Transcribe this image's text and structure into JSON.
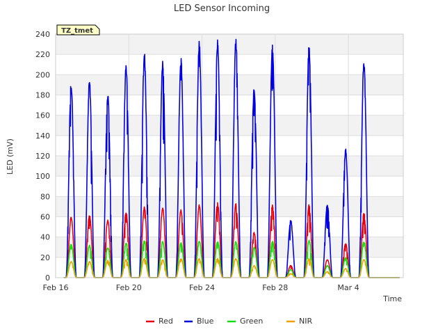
{
  "chart_data": {
    "type": "line",
    "title": "LED Sensor Incoming",
    "xlabel": "Time",
    "ylabel": "LED (mV)",
    "station_tag": "TZ_tmet",
    "xlim": [
      16,
      35
    ],
    "ylim": [
      0,
      240
    ],
    "yticks": [
      0,
      20,
      40,
      60,
      80,
      100,
      120,
      140,
      160,
      180,
      200,
      220,
      240
    ],
    "xticks": [
      {
        "value": 16,
        "label": "Feb 16"
      },
      {
        "value": 20,
        "label": "Feb 20"
      },
      {
        "value": 24,
        "label": "Feb 24"
      },
      {
        "value": 28,
        "label": "Feb 28"
      },
      {
        "value": 32,
        "label": "Mar 4"
      }
    ],
    "days": [
      16.85,
      17.85,
      18.85,
      19.85,
      20.85,
      21.85,
      22.85,
      23.85,
      24.85,
      25.85,
      26.85,
      27.85,
      28.85,
      29.85,
      30.85,
      31.85,
      32.85
    ],
    "series": [
      {
        "name": "Red",
        "color": "#e8000b",
        "peaks": [
          60,
          62,
          57,
          65,
          70,
          70,
          68,
          72,
          74,
          73,
          45,
          72,
          12,
          72,
          18,
          34,
          64
        ]
      },
      {
        "name": "Blue",
        "color": "#0000e0",
        "peaks": [
          193,
          195,
          182,
          210,
          222,
          215,
          219,
          234,
          235,
          236,
          190,
          231,
          57,
          232,
          73,
          128,
          216
        ]
      },
      {
        "name": "Green",
        "color": "#10e010",
        "peaks": [
          33,
          32,
          30,
          34,
          37,
          36,
          35,
          36,
          36,
          36,
          30,
          36,
          8,
          37,
          12,
          20,
          36
        ]
      },
      {
        "name": "NIR",
        "color": "#f0a000",
        "peaks": [
          16,
          16,
          17,
          18,
          19,
          18,
          19,
          19,
          19,
          19,
          12,
          18,
          4,
          19,
          6,
          9,
          18
        ]
      }
    ]
  }
}
